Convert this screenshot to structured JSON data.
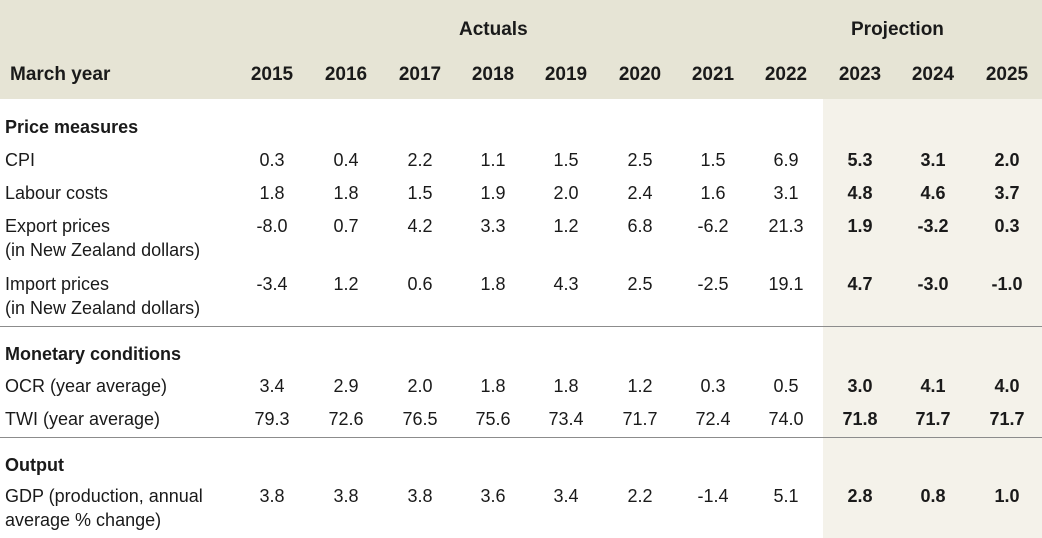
{
  "header": {
    "group_actuals": "Actuals",
    "group_projection": "Projection",
    "row_label": "March year",
    "years": [
      "2015",
      "2016",
      "2017",
      "2018",
      "2019",
      "2020",
      "2021",
      "2022",
      "2023",
      "2024",
      "2025"
    ]
  },
  "sections": [
    {
      "title": "Price measures",
      "rows": [
        {
          "label": [
            "CPI"
          ],
          "values": [
            "0.3",
            "0.4",
            "2.2",
            "1.1",
            "1.5",
            "2.5",
            "1.5",
            "6.9",
            "5.3",
            "3.1",
            "2.0"
          ]
        },
        {
          "label": [
            "Labour costs"
          ],
          "values": [
            "1.8",
            "1.8",
            "1.5",
            "1.9",
            "2.0",
            "2.4",
            "1.6",
            "3.1",
            "4.8",
            "4.6",
            "3.7"
          ]
        },
        {
          "label": [
            "Export prices",
            "(in New Zealand dollars)"
          ],
          "values": [
            "-8.0",
            "0.7",
            "4.2",
            "3.3",
            "1.2",
            "6.8",
            "-6.2",
            "21.3",
            "1.9",
            "-3.2",
            "0.3"
          ]
        },
        {
          "label": [
            "Import prices",
            "(in New Zealand dollars)"
          ],
          "values": [
            "-3.4",
            "1.2",
            "0.6",
            "1.8",
            "4.3",
            "2.5",
            "-2.5",
            "19.1",
            "4.7",
            "-3.0",
            "-1.0"
          ]
        }
      ]
    },
    {
      "title": "Monetary conditions",
      "rows": [
        {
          "label": [
            "OCR (year average)"
          ],
          "values": [
            "3.4",
            "2.9",
            "2.0",
            "1.8",
            "1.8",
            "1.2",
            "0.3",
            "0.5",
            "3.0",
            "4.1",
            "4.0"
          ]
        },
        {
          "label": [
            "TWI (year average)"
          ],
          "values": [
            "79.3",
            "72.6",
            "76.5",
            "75.6",
            "73.4",
            "71.7",
            "72.4",
            "74.0",
            "71.8",
            "71.7",
            "71.7"
          ]
        }
      ]
    },
    {
      "title": "Output",
      "rows": [
        {
          "label": [
            "GDP (production, annual",
            "average % change)"
          ],
          "values": [
            "3.8",
            "3.8",
            "3.8",
            "3.6",
            "3.4",
            "2.2",
            "-1.4",
            "5.1",
            "2.8",
            "0.8",
            "1.0"
          ]
        }
      ]
    }
  ]
}
